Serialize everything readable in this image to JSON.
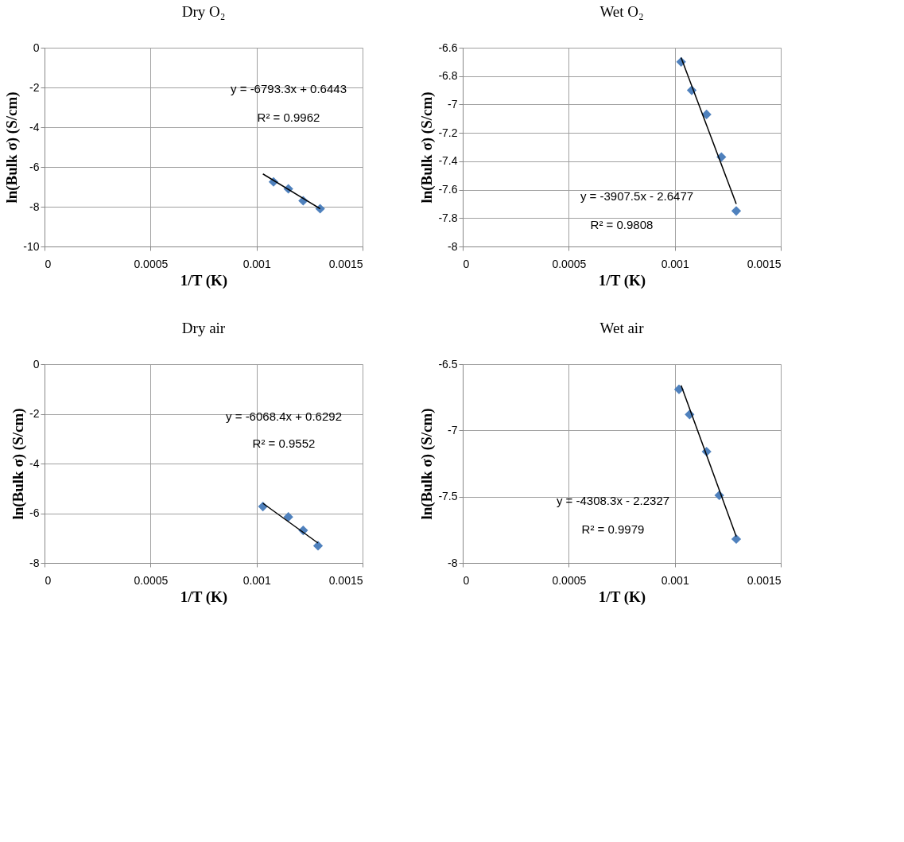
{
  "chart_data": [
    {
      "type": "scatter",
      "title": "Dry O₂",
      "xlabel": "1/T (K)",
      "ylabel": "ln(Bulk σ) (S/cm)",
      "xlim": [
        0,
        0.0015
      ],
      "xticks": [
        0,
        0.0005,
        0.001,
        0.0015
      ],
      "ylim": [
        -10,
        0
      ],
      "yticks": [
        -10,
        -8,
        -6,
        -4,
        -2,
        0
      ],
      "grid": true,
      "series": [
        {
          "type": "scatter",
          "color": "#4f81bd",
          "marker": "diamond",
          "x": [
            0.00108,
            0.00115,
            0.00122,
            0.0013
          ],
          "values": [
            -6.75,
            -7.1,
            -7.7,
            -8.1
          ]
        },
        {
          "type": "line",
          "color": "#000000",
          "line_style": "solid",
          "x": [
            0.00103,
            0.0013
          ],
          "values": [
            -6.35,
            -8.1
          ]
        }
      ],
      "annotations": [
        "y = -6793.3x + 0.6443",
        "R² = 0.9962"
      ]
    },
    {
      "type": "scatter",
      "title": "Wet O₂",
      "xlabel": "1/T (K)",
      "ylabel": "ln(Bulk σ) (S/cm)",
      "xlim": [
        0,
        0.0015
      ],
      "xticks": [
        0,
        0.0005,
        0.001,
        0.0015
      ],
      "ylim": [
        -8,
        -6.6
      ],
      "yticks": [
        -8,
        -7.8,
        -7.6,
        -7.4,
        -7.2,
        -7,
        -6.8,
        -6.6
      ],
      "grid": true,
      "series": [
        {
          "type": "scatter",
          "color": "#4f81bd",
          "marker": "diamond",
          "x": [
            0.00103,
            0.00108,
            0.00115,
            0.00122,
            0.00129
          ],
          "values": [
            -6.7,
            -6.9,
            -7.07,
            -7.37,
            -7.75
          ]
        },
        {
          "type": "line",
          "color": "#000000",
          "line_style": "solid",
          "x": [
            0.00103,
            0.00129
          ],
          "values": [
            -6.67,
            -7.7
          ]
        }
      ],
      "annotations": [
        "y = -3907.5x - 2.6477",
        "R² = 0.9808"
      ]
    },
    {
      "type": "scatter",
      "title": "Dry air",
      "xlabel": "1/T (K)",
      "ylabel": "ln(Bulk σ) (S/cm)",
      "xlim": [
        0,
        0.0015
      ],
      "xticks": [
        0,
        0.0005,
        0.001,
        0.0015
      ],
      "ylim": [
        -8,
        0
      ],
      "yticks": [
        -8,
        -6,
        -4,
        -2,
        0
      ],
      "grid": true,
      "series": [
        {
          "type": "scatter",
          "color": "#4f81bd",
          "marker": "diamond",
          "x": [
            0.00103,
            0.00115,
            0.00122,
            0.00129
          ],
          "values": [
            -5.73,
            -6.15,
            -6.69,
            -7.31
          ]
        },
        {
          "type": "line",
          "color": "#000000",
          "line_style": "solid",
          "x": [
            0.00103,
            0.00129
          ],
          "values": [
            -5.6,
            -7.2
          ]
        }
      ],
      "annotations": [
        "y = -6068.4x + 0.6292",
        "R² = 0.9552"
      ]
    },
    {
      "type": "scatter",
      "title": "Wet air",
      "xlabel": "1/T (K)",
      "ylabel": "ln(Bulk σ) (S/cm)",
      "xlim": [
        0,
        0.0015
      ],
      "xticks": [
        0,
        0.0005,
        0.001,
        0.0015
      ],
      "ylim": [
        -8,
        -6.5
      ],
      "yticks": [
        -8,
        -7.5,
        -7,
        -6.5
      ],
      "grid": true,
      "series": [
        {
          "type": "scatter",
          "color": "#4f81bd",
          "marker": "diamond",
          "x": [
            0.00102,
            0.00107,
            0.00115,
            0.00121,
            0.00129
          ],
          "values": [
            -6.69,
            -6.88,
            -7.16,
            -7.49,
            -7.82
          ]
        },
        {
          "type": "line",
          "color": "#000000",
          "line_style": "solid",
          "x": [
            0.00103,
            0.00129
          ],
          "values": [
            -6.66,
            -7.8
          ]
        }
      ],
      "annotations": [
        "y = -4308.3x - 2.2327",
        "R² = 0.9979"
      ]
    }
  ]
}
